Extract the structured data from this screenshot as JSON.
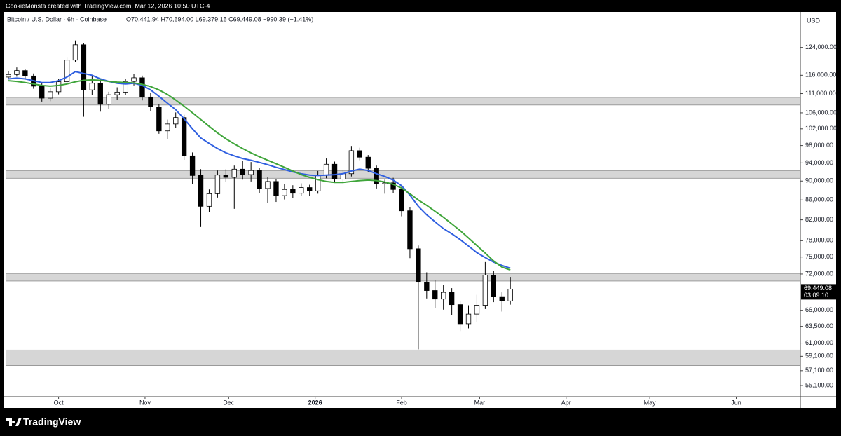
{
  "header": {
    "credit": "CookieMonsta created with TradingView.com, Mar 12, 2026 10:50 UTC-4"
  },
  "footer": {
    "brand": "TradingView"
  },
  "chart_data": {
    "type": "candlestick",
    "symbol_title": "Bitcoin / U.S. Dollar · 6h · Coinbase",
    "ohlc_text": "O70,441.94 H70,694.00 L69,379.15 C69,449.08 −990.39 (−1.41%)",
    "currency": "USD",
    "log_scale": true,
    "grid": false,
    "up_color": "#ffffff",
    "down_color": "#000000",
    "xlim": [
      -19,
      266
    ],
    "xticks": [
      {
        "value": 0,
        "label": "Oct"
      },
      {
        "value": 31,
        "label": "Nov"
      },
      {
        "value": 61,
        "label": "Dec"
      },
      {
        "value": 92,
        "label": "2026",
        "bold": true
      },
      {
        "value": 123,
        "label": "Feb"
      },
      {
        "value": 151,
        "label": "Mar"
      },
      {
        "value": 182,
        "label": "Apr"
      },
      {
        "value": 212,
        "label": "May"
      },
      {
        "value": 243,
        "label": "Jun"
      }
    ],
    "ylim": [
      53640,
      134800
    ],
    "yticks": [
      {
        "value": 124000,
        "label": "124,000.00"
      },
      {
        "value": 116000,
        "label": "116,000.00"
      },
      {
        "value": 111000,
        "label": "111,000.00"
      },
      {
        "value": 106000,
        "label": "106,000.00"
      },
      {
        "value": 102000,
        "label": "102,000.00"
      },
      {
        "value": 98000,
        "label": "98,000.00"
      },
      {
        "value": 94000,
        "label": "94,000.00"
      },
      {
        "value": 90000,
        "label": "90,000.00"
      },
      {
        "value": 86000,
        "label": "86,000.00"
      },
      {
        "value": 82000,
        "label": "82,000.00"
      },
      {
        "value": 78000,
        "label": "78,000.00"
      },
      {
        "value": 75000,
        "label": "75,000.00"
      },
      {
        "value": 72000,
        "label": "72,000.00"
      },
      {
        "value": 66000,
        "label": "66,000.00"
      },
      {
        "value": 63500,
        "label": "63,500.00"
      },
      {
        "value": 61000,
        "label": "61,000.00"
      },
      {
        "value": 59100,
        "label": "59,100.00"
      },
      {
        "value": 57100,
        "label": "57,100.00"
      },
      {
        "value": 55100,
        "label": "55,100.00"
      }
    ],
    "zones": [
      {
        "low": 108000,
        "high": 110000,
        "color": "#d6d6d6"
      },
      {
        "low": 90600,
        "high": 92300,
        "color": "#d6d6d6"
      },
      {
        "low": 70800,
        "high": 72100,
        "color": "#d6d6d6"
      },
      {
        "low": 57800,
        "high": 60000,
        "color": "#d6d6d6"
      }
    ],
    "last_price": {
      "value": 69449.08,
      "label": "69,449.08",
      "countdown": "03:09:10"
    },
    "x": [
      -18,
      -15,
      -12,
      -9,
      -6,
      -3,
      0,
      3,
      6,
      9,
      12,
      15,
      18,
      21,
      24,
      27,
      30,
      33,
      36,
      39,
      42,
      45,
      48,
      51,
      54,
      57,
      60,
      63,
      66,
      69,
      72,
      75,
      78,
      81,
      84,
      87,
      90,
      93,
      96,
      99,
      102,
      105,
      108,
      111,
      114,
      117,
      120,
      123,
      126,
      129,
      132,
      135,
      138,
      141,
      144,
      147,
      150,
      153,
      156,
      159,
      162
    ],
    "open": [
      115500,
      116200,
      117300,
      115800,
      113000,
      109800,
      111500,
      114200,
      120300,
      124800,
      112000,
      113800,
      108200,
      110700,
      111400,
      114300,
      115300,
      110100,
      107500,
      101500,
      103200,
      104800,
      95600,
      91200,
      84700,
      87300,
      91300,
      90800,
      92600,
      91400,
      92300,
      88400,
      89900,
      86900,
      88200,
      87400,
      88600,
      87900,
      91300,
      93700,
      90400,
      91600,
      96800,
      95300,
      92800,
      89400,
      89600,
      88200,
      83800,
      76500,
      70600,
      69200,
      67800,
      68900,
      66900,
      63900,
      65400,
      66800,
      71800,
      68200,
      67500
    ],
    "high": [
      117200,
      118200,
      117800,
      116500,
      113800,
      112600,
      115000,
      121000,
      126100,
      125300,
      115800,
      114600,
      111500,
      112700,
      115000,
      116400,
      115900,
      111200,
      108200,
      104300,
      106100,
      105500,
      96400,
      92600,
      88200,
      92300,
      92600,
      93400,
      94500,
      94200,
      92900,
      90800,
      90400,
      89300,
      89100,
      89500,
      89200,
      92200,
      95000,
      94300,
      92400,
      97900,
      97500,
      95800,
      93400,
      90300,
      90700,
      88800,
      84500,
      77100,
      72300,
      70900,
      70200,
      69600,
      67500,
      66800,
      68500,
      74100,
      72600,
      68900,
      71500
    ],
    "low": [
      114800,
      115600,
      115000,
      112300,
      108900,
      109000,
      110800,
      113800,
      119800,
      105000,
      110600,
      106300,
      107000,
      109300,
      110600,
      113200,
      109200,
      106500,
      100800,
      99600,
      102300,
      94700,
      89300,
      80600,
      83600,
      86500,
      89800,
      84200,
      90300,
      89900,
      87500,
      85400,
      85600,
      86100,
      86400,
      86800,
      86800,
      87300,
      90600,
      89700,
      89500,
      91000,
      94600,
      92000,
      88400,
      87300,
      87400,
      82700,
      74800,
      60100,
      67900,
      66300,
      66100,
      65300,
      62800,
      63200,
      64100,
      66200,
      67300,
      65800,
      66900
    ],
    "close": [
      116200,
      117300,
      115800,
      113000,
      109800,
      111500,
      114200,
      120300,
      124800,
      112000,
      113800,
      108200,
      110700,
      111400,
      114300,
      115300,
      110100,
      107500,
      101500,
      103200,
      104800,
      95600,
      91200,
      84700,
      87300,
      91300,
      90800,
      92600,
      91400,
      92300,
      88400,
      89900,
      86900,
      88200,
      87400,
      88600,
      87900,
      91300,
      93700,
      90400,
      91600,
      96800,
      95300,
      92800,
      89400,
      89600,
      88200,
      83800,
      76500,
      70600,
      69200,
      67800,
      68900,
      66900,
      63900,
      65400,
      66800,
      71800,
      68200,
      67500,
      69449.08
    ],
    "series": [
      {
        "color": "#2f5fe0",
        "values": [
          115000,
          115200,
          115000,
          114500,
          114000,
          114000,
          114500,
          115500,
          117000,
          116500,
          116000,
          115000,
          114300,
          113800,
          113600,
          113800,
          113200,
          112000,
          110300,
          108500,
          106800,
          104500,
          102000,
          99800,
          98500,
          97300,
          96300,
          95600,
          95000,
          94600,
          94100,
          93600,
          93000,
          92500,
          92000,
          91600,
          91300,
          91200,
          91300,
          91400,
          91600,
          92200,
          92600,
          92300,
          91600,
          91000,
          90200,
          89000,
          87000,
          84700,
          83000,
          81600,
          80300,
          79300,
          78200,
          77000,
          75800,
          74900,
          74100,
          73500,
          73000
        ]
      },
      {
        "color": "#3fa53a",
        "values": [
          114500,
          114300,
          114000,
          113600,
          113200,
          113000,
          113200,
          113600,
          114200,
          114600,
          114700,
          114600,
          114300,
          114100,
          114000,
          113900,
          113500,
          112900,
          112000,
          110800,
          109300,
          107700,
          106000,
          104300,
          102600,
          101000,
          99600,
          98400,
          97300,
          96300,
          95400,
          94600,
          93800,
          93000,
          92200,
          91400,
          90800,
          90300,
          89900,
          89700,
          89700,
          89900,
          90100,
          90200,
          90100,
          89800,
          89300,
          88500,
          87300,
          86000,
          84900,
          83700,
          82500,
          81200,
          79900,
          78500,
          77100,
          75700,
          74300,
          73200,
          72700
        ]
      }
    ]
  }
}
